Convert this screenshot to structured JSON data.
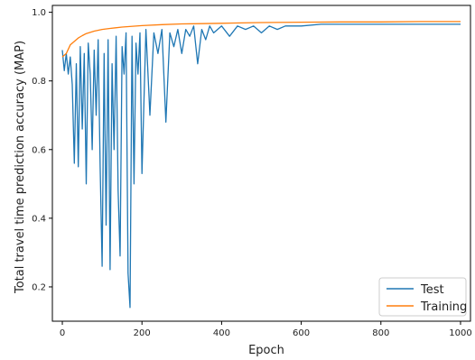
{
  "chart_data": {
    "type": "line",
    "title": "",
    "xlabel": "Epoch",
    "ylabel": "Total travel time prediction accuracy (MAP)",
    "xlim": [
      -25,
      1025
    ],
    "ylim": [
      0.1,
      1.02
    ],
    "x_ticks": [
      0,
      200,
      400,
      600,
      800,
      1000
    ],
    "y_ticks": [
      0.2,
      0.4,
      0.6,
      0.8,
      1.0
    ],
    "x_tick_labels": [
      "0",
      "200",
      "400",
      "600",
      "800",
      "1000"
    ],
    "y_tick_labels": [
      "0.2",
      "0.4",
      "0.6",
      "0.8",
      "1.0"
    ],
    "grid": false,
    "legend_position": "lower-right",
    "series": [
      {
        "name": "Test",
        "color": "#1f77b4",
        "x": [
          0,
          5,
          10,
          15,
          20,
          25,
          30,
          35,
          40,
          45,
          50,
          55,
          60,
          65,
          70,
          75,
          80,
          85,
          90,
          95,
          100,
          105,
          110,
          115,
          120,
          125,
          130,
          135,
          140,
          145,
          150,
          155,
          160,
          165,
          170,
          175,
          180,
          185,
          190,
          195,
          200,
          210,
          220,
          230,
          240,
          250,
          260,
          270,
          280,
          290,
          300,
          310,
          320,
          330,
          340,
          350,
          360,
          370,
          380,
          390,
          400,
          420,
          440,
          460,
          480,
          500,
          520,
          540,
          560,
          580,
          600,
          650,
          700,
          750,
          800,
          850,
          900,
          950,
          1000
        ],
        "y": [
          0.89,
          0.83,
          0.88,
          0.82,
          0.87,
          0.79,
          0.56,
          0.85,
          0.55,
          0.9,
          0.66,
          0.88,
          0.5,
          0.91,
          0.82,
          0.6,
          0.89,
          0.7,
          0.92,
          0.55,
          0.26,
          0.88,
          0.38,
          0.92,
          0.25,
          0.85,
          0.6,
          0.93,
          0.48,
          0.29,
          0.9,
          0.82,
          0.94,
          0.24,
          0.14,
          0.93,
          0.5,
          0.91,
          0.82,
          0.94,
          0.53,
          0.95,
          0.7,
          0.94,
          0.88,
          0.95,
          0.68,
          0.94,
          0.9,
          0.95,
          0.88,
          0.95,
          0.93,
          0.96,
          0.85,
          0.95,
          0.92,
          0.96,
          0.94,
          0.95,
          0.96,
          0.93,
          0.96,
          0.95,
          0.96,
          0.94,
          0.96,
          0.95,
          0.96,
          0.96,
          0.96,
          0.965,
          0.965,
          0.965,
          0.965,
          0.965,
          0.965,
          0.965,
          0.965
        ]
      },
      {
        "name": "Training",
        "color": "#ff7f0e",
        "x": [
          0,
          10,
          20,
          30,
          40,
          50,
          60,
          80,
          100,
          120,
          150,
          200,
          250,
          300,
          350,
          400,
          450,
          500,
          600,
          700,
          800,
          900,
          1000
        ],
        "y": [
          0.87,
          0.88,
          0.905,
          0.915,
          0.925,
          0.932,
          0.938,
          0.945,
          0.95,
          0.953,
          0.957,
          0.961,
          0.964,
          0.966,
          0.967,
          0.968,
          0.969,
          0.97,
          0.971,
          0.972,
          0.972,
          0.973,
          0.973
        ]
      }
    ]
  }
}
